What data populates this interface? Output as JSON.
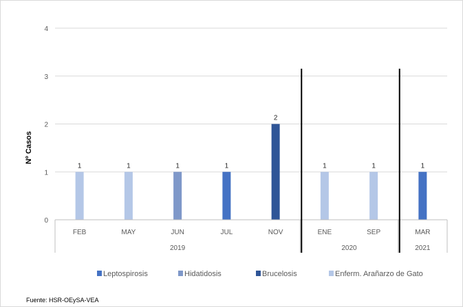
{
  "chart_data": {
    "type": "bar",
    "title": "",
    "ylabel": "Nº Casos",
    "ylim": [
      0,
      4
    ],
    "yticks": [
      0,
      1,
      2,
      3,
      4
    ],
    "grid": true,
    "legend_position": "bottom",
    "categories": [
      "FEB",
      "MAY",
      "JUN",
      "JUL",
      "NOV",
      "ENE",
      "SEP",
      "MAR"
    ],
    "year_groups": [
      {
        "label": "2019",
        "count": 5
      },
      {
        "label": "2020",
        "count": 2
      },
      {
        "label": "2021",
        "count": 1
      }
    ],
    "series": [
      {
        "name": "Leptospirosis",
        "color": "#4472c4",
        "values": [
          0,
          0,
          0,
          1,
          0,
          0,
          0,
          1
        ]
      },
      {
        "name": "Hidatidosis",
        "color": "#7f98c9",
        "values": [
          0,
          0,
          1,
          0,
          0,
          0,
          0,
          0
        ]
      },
      {
        "name": "Brucelosis",
        "color": "#2f5597",
        "values": [
          0,
          0,
          0,
          0,
          2,
          0,
          0,
          0
        ]
      },
      {
        "name": "Enferm. Arañarzo de Gato",
        "color": "#b4c7e7",
        "values": [
          1,
          1,
          0,
          0,
          0,
          1,
          1,
          0
        ]
      }
    ],
    "source": "Fuente: HSR-OEySA-VEA"
  }
}
